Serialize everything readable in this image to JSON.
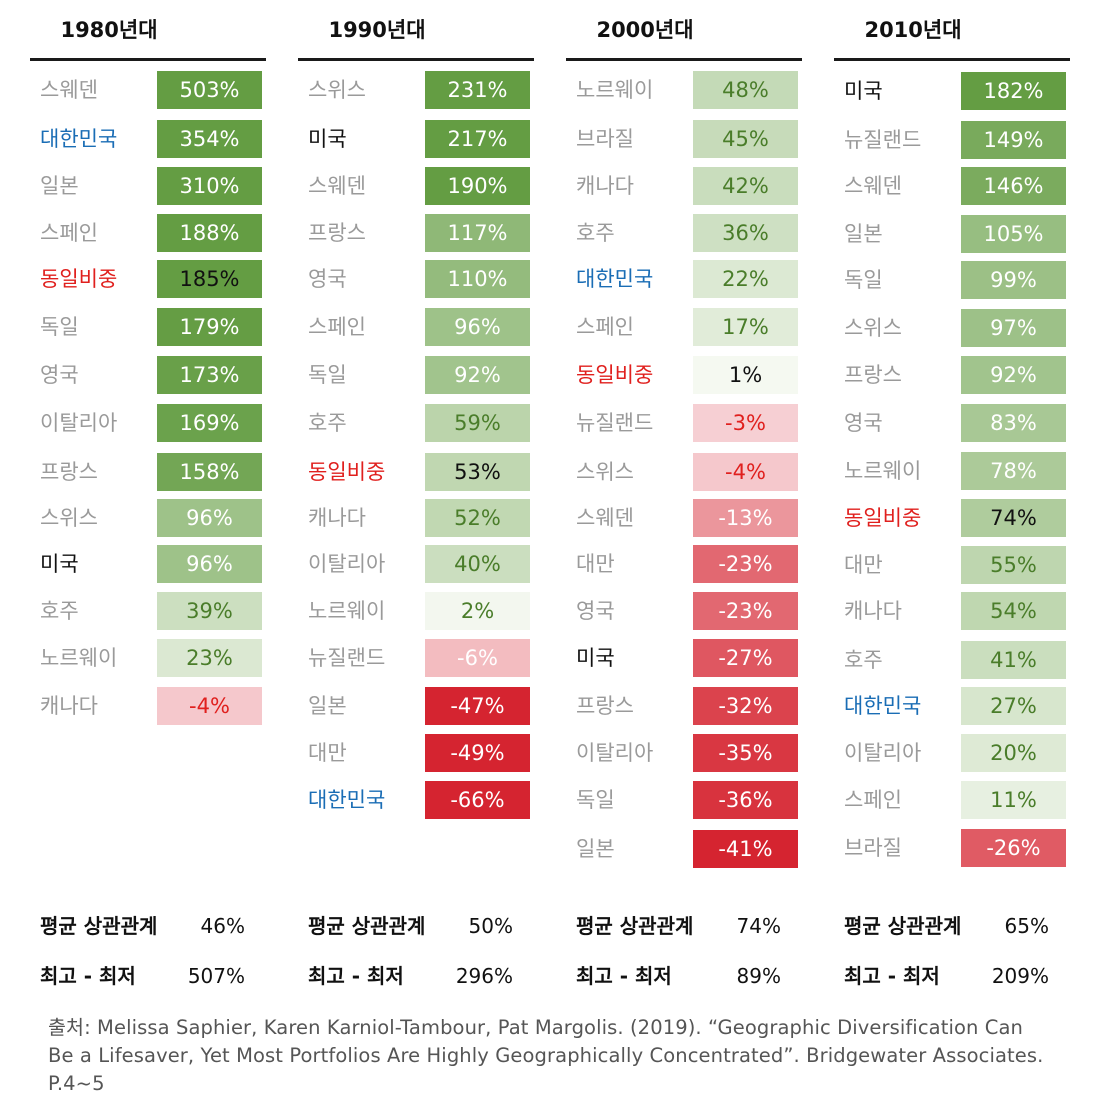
{
  "chart_data": {
    "type": "table",
    "columns": [
      {
        "title": "1980년대",
        "rows": [
          {
            "country": "스웨덴",
            "value": 503,
            "label": "503%"
          },
          {
            "country": "대한민국",
            "value": 354,
            "label": "354%"
          },
          {
            "country": "일본",
            "value": 310,
            "label": "310%"
          },
          {
            "country": "스페인",
            "value": 188,
            "label": "188%"
          },
          {
            "country": "동일비중",
            "value": 185,
            "label": "185%"
          },
          {
            "country": "독일",
            "value": 179,
            "label": "179%"
          },
          {
            "country": "영국",
            "value": 173,
            "label": "173%"
          },
          {
            "country": "이탈리아",
            "value": 169,
            "label": "169%"
          },
          {
            "country": "프랑스",
            "value": 158,
            "label": "158%"
          },
          {
            "country": "스위스",
            "value": 96,
            "label": "96%"
          },
          {
            "country": "미국",
            "value": 96,
            "label": "96%"
          },
          {
            "country": "호주",
            "value": 39,
            "label": "39%"
          },
          {
            "country": "노르웨이",
            "value": 23,
            "label": "23%"
          },
          {
            "country": "캐나다",
            "value": -4,
            "label": "-4%"
          }
        ],
        "avg_corr_label": "평균 상관관계",
        "avg_corr": "46%",
        "range_label": "최고 - 최저",
        "range": "507%"
      },
      {
        "title": "1990년대",
        "rows": [
          {
            "country": "스위스",
            "value": 231,
            "label": "231%"
          },
          {
            "country": "미국",
            "value": 217,
            "label": "217%"
          },
          {
            "country": "스웨덴",
            "value": 190,
            "label": "190%"
          },
          {
            "country": "프랑스",
            "value": 117,
            "label": "117%"
          },
          {
            "country": "영국",
            "value": 110,
            "label": "110%"
          },
          {
            "country": "스페인",
            "value": 96,
            "label": "96%"
          },
          {
            "country": "독일",
            "value": 92,
            "label": "92%"
          },
          {
            "country": "호주",
            "value": 59,
            "label": "59%"
          },
          {
            "country": "동일비중",
            "value": 53,
            "label": "53%"
          },
          {
            "country": "캐나다",
            "value": 52,
            "label": "52%"
          },
          {
            "country": "이탈리아",
            "value": 40,
            "label": "40%"
          },
          {
            "country": "노르웨이",
            "value": 2,
            "label": "2%"
          },
          {
            "country": "뉴질랜드",
            "value": -6,
            "label": "-6%"
          },
          {
            "country": "일본",
            "value": -47,
            "label": "-47%"
          },
          {
            "country": "대만",
            "value": -49,
            "label": "-49%"
          },
          {
            "country": "대한민국",
            "value": -66,
            "label": "-66%"
          }
        ],
        "avg_corr_label": "평균 상관관계",
        "avg_corr": "50%",
        "range_label": "최고 - 최저",
        "range": "296%"
      },
      {
        "title": "2000년대",
        "rows": [
          {
            "country": "노르웨이",
            "value": 48,
            "label": "48%"
          },
          {
            "country": "브라질",
            "value": 45,
            "label": "45%"
          },
          {
            "country": "캐나다",
            "value": 42,
            "label": "42%"
          },
          {
            "country": "호주",
            "value": 36,
            "label": "36%"
          },
          {
            "country": "대한민국",
            "value": 22,
            "label": "22%"
          },
          {
            "country": "스페인",
            "value": 17,
            "label": "17%"
          },
          {
            "country": "동일비중",
            "value": 1,
            "label": "1%"
          },
          {
            "country": "뉴질랜드",
            "value": -3,
            "label": "-3%"
          },
          {
            "country": "스위스",
            "value": -4,
            "label": "-4%"
          },
          {
            "country": "스웨덴",
            "value": -13,
            "label": "-13%"
          },
          {
            "country": "대만",
            "value": -23,
            "label": "-23%"
          },
          {
            "country": "영국",
            "value": -23,
            "label": "-23%"
          },
          {
            "country": "미국",
            "value": -27,
            "label": "-27%"
          },
          {
            "country": "프랑스",
            "value": -32,
            "label": "-32%"
          },
          {
            "country": "이탈리아",
            "value": -35,
            "label": "-35%"
          },
          {
            "country": "독일",
            "value": -36,
            "label": "-36%"
          },
          {
            "country": "일본",
            "value": -41,
            "label": "-41%"
          }
        ],
        "avg_corr_label": "평균 상관관계",
        "avg_corr": "74%",
        "range_label": "최고 - 최저",
        "range": "89%"
      },
      {
        "title": "2010년대",
        "rows": [
          {
            "country": "미국",
            "value": 182,
            "label": "182%"
          },
          {
            "country": "뉴질랜드",
            "value": 149,
            "label": "149%"
          },
          {
            "country": "스웨덴",
            "value": 146,
            "label": "146%"
          },
          {
            "country": "일본",
            "value": 105,
            "label": "105%"
          },
          {
            "country": "독일",
            "value": 99,
            "label": "99%"
          },
          {
            "country": "스위스",
            "value": 97,
            "label": "97%"
          },
          {
            "country": "프랑스",
            "value": 92,
            "label": "92%"
          },
          {
            "country": "영국",
            "value": 83,
            "label": "83%"
          },
          {
            "country": "노르웨이",
            "value": 78,
            "label": "78%"
          },
          {
            "country": "동일비중",
            "value": 74,
            "label": "74%"
          },
          {
            "country": "대만",
            "value": 55,
            "label": "55%"
          },
          {
            "country": "캐나다",
            "value": 54,
            "label": "54%"
          },
          {
            "country": "호주",
            "value": 41,
            "label": "41%"
          },
          {
            "country": "대한민국",
            "value": 27,
            "label": "27%"
          },
          {
            "country": "이탈리아",
            "value": 20,
            "label": "20%"
          },
          {
            "country": "스페인",
            "value": 11,
            "label": "11%"
          },
          {
            "country": "브라질",
            "value": -26,
            "label": "-26%"
          }
        ],
        "avg_corr_label": "평균 상관관계",
        "avg_corr": "65%",
        "range_label": "최고 - 최저",
        "range": "209%"
      }
    ]
  },
  "source": "출처: Melissa Saphier, Karen Karniol-Tambour, Pat Margolis. (2019). “Geographic Diversification Can Be a Lifesaver, Yet Most Portfolios Are Highly Geographically Concentrated”. Bridgewater Associates. P.4~5"
}
